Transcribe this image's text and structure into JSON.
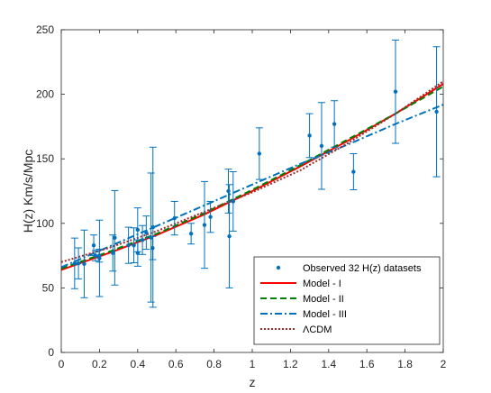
{
  "chart_data": {
    "type": "scatter",
    "title": "",
    "xlabel": "z",
    "ylabel": "H(z) Km/s/Mpc",
    "xlim": [
      0,
      2
    ],
    "ylim": [
      0,
      250
    ],
    "x_ticks": [
      "0",
      "0.2",
      "0.4",
      "0.6",
      "0.8",
      "1",
      "1.2",
      "1.4",
      "1.6",
      "1.8",
      "2"
    ],
    "y_ticks": [
      "0",
      "50",
      "100",
      "150",
      "200",
      "250"
    ],
    "grid": false,
    "legend_position": "bottom-right",
    "observations": {
      "name": "Observed 32 H(z) datasets",
      "color": "#0072BD",
      "points": [
        {
          "z": 0.07,
          "H": 69,
          "err": 19.6
        },
        {
          "z": 0.09,
          "H": 69,
          "err": 12
        },
        {
          "z": 0.12,
          "H": 68.6,
          "err": 26.2
        },
        {
          "z": 0.17,
          "H": 83,
          "err": 8
        },
        {
          "z": 0.179,
          "H": 75,
          "err": 4
        },
        {
          "z": 0.199,
          "H": 75,
          "err": 5
        },
        {
          "z": 0.2,
          "H": 72.9,
          "err": 29.6
        },
        {
          "z": 0.27,
          "H": 77,
          "err": 14
        },
        {
          "z": 0.28,
          "H": 88.8,
          "err": 36.6
        },
        {
          "z": 0.352,
          "H": 83,
          "err": 14
        },
        {
          "z": 0.38,
          "H": 83,
          "err": 13.5
        },
        {
          "z": 0.4,
          "H": 95,
          "err": 17
        },
        {
          "z": 0.4004,
          "H": 77,
          "err": 10.2
        },
        {
          "z": 0.425,
          "H": 87.1,
          "err": 11.2
        },
        {
          "z": 0.445,
          "H": 92.8,
          "err": 12.9
        },
        {
          "z": 0.47,
          "H": 89,
          "err": 50
        },
        {
          "z": 0.4783,
          "H": 80.9,
          "err": 9
        },
        {
          "z": 0.48,
          "H": 97,
          "err": 62
        },
        {
          "z": 0.593,
          "H": 104,
          "err": 13
        },
        {
          "z": 0.68,
          "H": 92,
          "err": 8
        },
        {
          "z": 0.75,
          "H": 98.8,
          "err": 33.6
        },
        {
          "z": 0.781,
          "H": 105,
          "err": 12
        },
        {
          "z": 0.875,
          "H": 125,
          "err": 17
        },
        {
          "z": 0.88,
          "H": 90,
          "err": 40
        },
        {
          "z": 0.9,
          "H": 117,
          "err": 23
        },
        {
          "z": 1.037,
          "H": 154,
          "err": 20
        },
        {
          "z": 1.3,
          "H": 168,
          "err": 17
        },
        {
          "z": 1.363,
          "H": 160,
          "err": 33.6
        },
        {
          "z": 1.43,
          "H": 177,
          "err": 18
        },
        {
          "z": 1.53,
          "H": 140,
          "err": 14
        },
        {
          "z": 1.75,
          "H": 202,
          "err": 40
        },
        {
          "z": 1.965,
          "H": 186.5,
          "err": 50.4
        }
      ]
    },
    "models": [
      {
        "name": "Model - I",
        "color": "#FF0000",
        "style": "solid",
        "x": [
          0,
          0.25,
          0.5,
          0.75,
          1,
          1.25,
          1.5,
          1.75,
          2
        ],
        "y": [
          64,
          77,
          91,
          107,
          125,
          144,
          164,
          185,
          208
        ]
      },
      {
        "name": "Model - II",
        "color": "#008000",
        "style": "dashed",
        "x": [
          0,
          0.25,
          0.5,
          0.75,
          1,
          1.25,
          1.5,
          1.75,
          2
        ],
        "y": [
          65,
          78,
          92,
          108,
          126,
          145,
          165,
          185,
          206
        ]
      },
      {
        "name": "Model - III",
        "color": "#0072BD",
        "style": "dashdot",
        "x": [
          0,
          0.25,
          0.5,
          0.75,
          1,
          1.25,
          1.5,
          1.75,
          2
        ],
        "y": [
          66,
          82,
          98,
          114,
          130,
          146,
          161,
          177,
          192
        ]
      },
      {
        "name": "ΛCDM",
        "color": "#A52A2A",
        "style": "dotted",
        "x": [
          0,
          0.25,
          0.5,
          0.75,
          1,
          1.25,
          1.5,
          1.75,
          2
        ],
        "y": [
          70,
          81,
          94,
          109,
          124,
          141,
          162,
          185,
          210
        ]
      }
    ]
  }
}
